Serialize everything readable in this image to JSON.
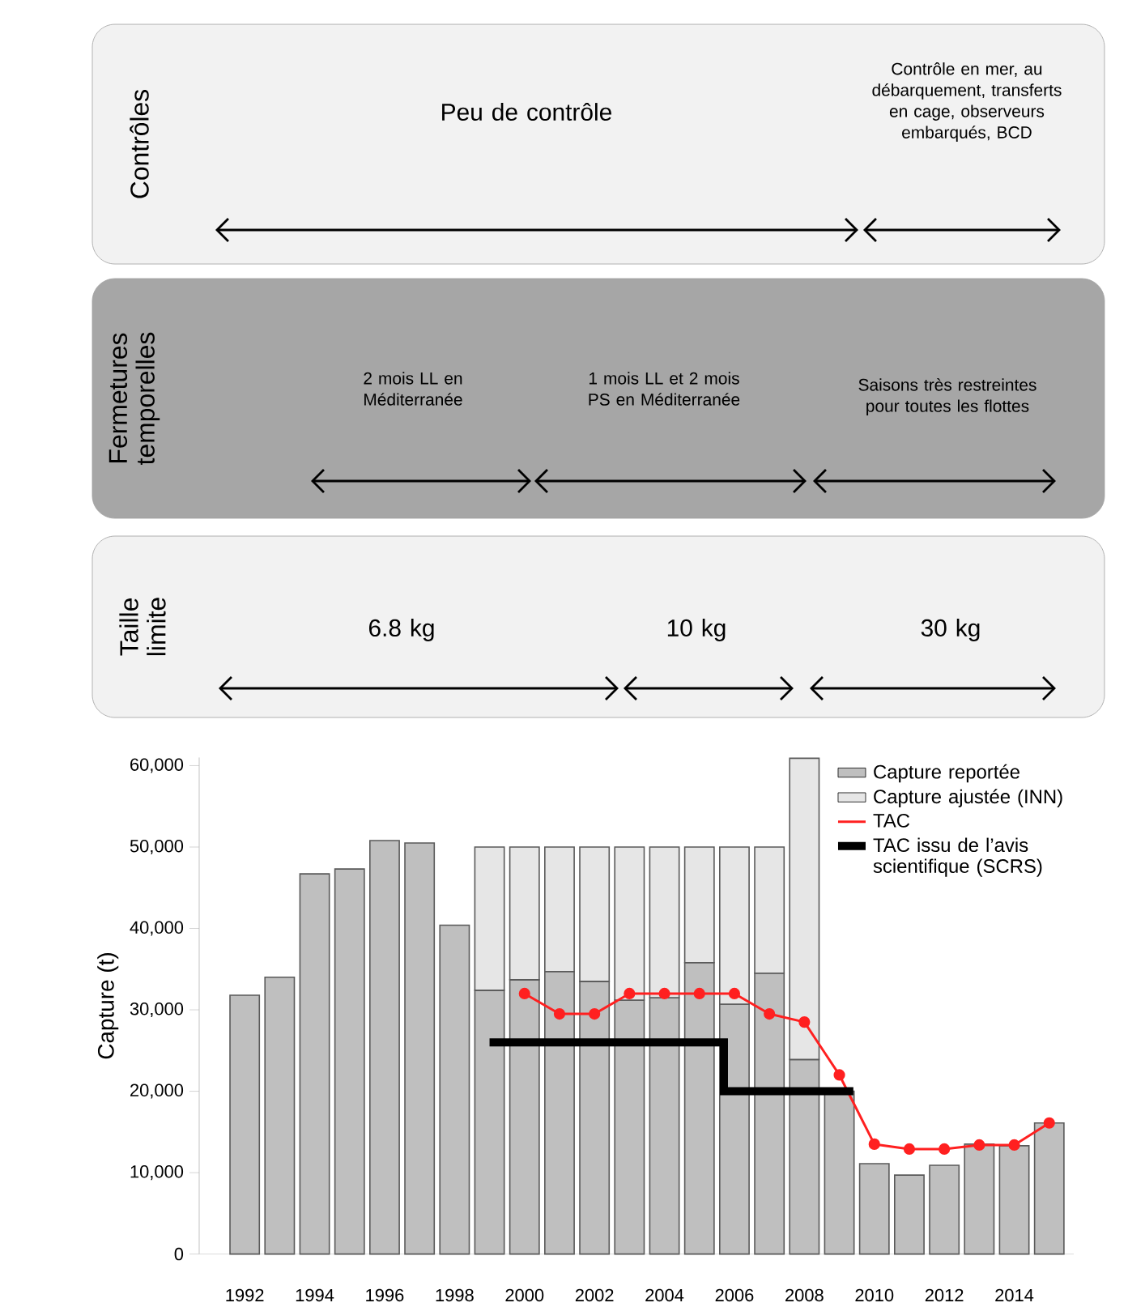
{
  "chart_data": [
    {
      "type": "other",
      "title": "Contrôles",
      "color": "#f2f2f2",
      "annotations": [
        "Peu de contrôle",
        "Contrôle en mer, au débarquement, transferts en cage, observeurs embarqués, BCD"
      ]
    },
    {
      "type": "other",
      "title": "Fermetures temporelles",
      "color": "#a6a6a6",
      "annotations": [
        "2 mois LL en Méditerranée",
        "1 mois LL et 2 mois PS en Méditerranée",
        "Saisons très restreintes pour toutes les flottes"
      ]
    },
    {
      "type": "other",
      "title": "Taille limite",
      "color": "#f2f2f2",
      "annotations": [
        "6.8 kg",
        "10 kg",
        "30 kg"
      ]
    },
    {
      "type": "bar",
      "ylabel": "Capture (t)",
      "stacked": true,
      "legend": "top right",
      "grid": false,
      "x": [
        1992,
        1993,
        1994,
        1995,
        1996,
        1997,
        1998,
        1999,
        2000,
        2001,
        2002,
        2003,
        2004,
        2005,
        2006,
        2007,
        2008,
        2009,
        2010,
        2011,
        2012,
        2013,
        2014,
        2015
      ],
      "xlim": [
        1990.7,
        2015.7
      ],
      "xticks": [
        1992,
        1994,
        1996,
        1998,
        2000,
        2002,
        2004,
        2006,
        2008,
        2010,
        2012,
        2014
      ],
      "ylim": [
        0,
        61000
      ],
      "yticks": [
        0,
        {
          "value": 10000,
          "label": "10,000"
        },
        {
          "value": 20000,
          "label": "20,000"
        },
        {
          "value": 30000,
          "label": "30,000"
        },
        {
          "value": 40000,
          "label": "40,000"
        },
        {
          "value": 50000,
          "label": "50,000"
        },
        {
          "value": 60000,
          "label": "60,000"
        }
      ],
      "series": [
        {
          "name": "Capture reportée",
          "type": "bar",
          "color": "#bfbfbf",
          "values": [
            31800,
            34000,
            46700,
            47300,
            50800,
            50500,
            40400,
            32400,
            33700,
            34700,
            33500,
            31200,
            31500,
            35800,
            30700,
            34500,
            23900,
            20000,
            11100,
            9700,
            10900,
            13500,
            13300,
            16100
          ]
        },
        {
          "name": "Capture ajustée (INN)",
          "type": "bar",
          "color": "#e6e6e6",
          "values": [
            null,
            null,
            null,
            null,
            null,
            null,
            null,
            17600,
            16300,
            15300,
            16500,
            18800,
            18500,
            14200,
            19300,
            15500,
            37000,
            null,
            null,
            null,
            null,
            null,
            null,
            null
          ]
        },
        {
          "name": "TAC",
          "type": "line",
          "color": "#ff2020",
          "marker": "circle",
          "x": [
            2000,
            2001,
            2002,
            2003,
            2004,
            2005,
            2006,
            2007,
            2008,
            2009,
            2010,
            2011,
            2012,
            2013,
            2014,
            2015
          ],
          "values": [
            32000,
            29500,
            29500,
            32000,
            32000,
            32000,
            32000,
            29500,
            28500,
            22000,
            13500,
            12900,
            12900,
            13400,
            13400,
            16100
          ]
        },
        {
          "name": "TAC issu de l’avis scientifique (SCRS)",
          "type": "step",
          "color": "#000000",
          "x": [
            1999,
            2005.7,
            2009.4
          ],
          "values": [
            26000,
            20000,
            20000
          ]
        }
      ]
    }
  ]
}
